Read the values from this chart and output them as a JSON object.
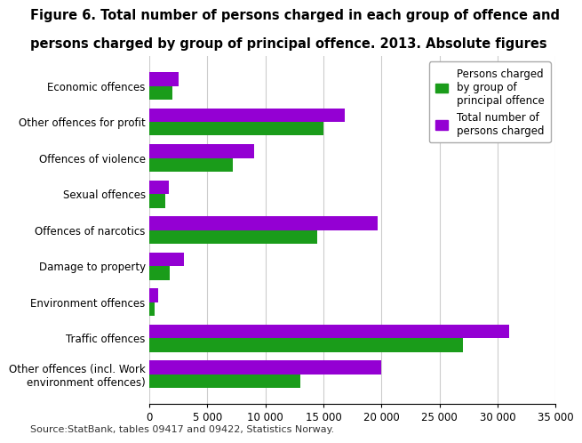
{
  "title_line1": "Figure 6. Total number of persons charged in each group of offence and",
  "title_line2": "persons charged by group of principal offence. 2013. Absolute figures",
  "categories": [
    "Economic offences",
    "Other offences for profit",
    "Offences of violence",
    "Sexual offences",
    "Offences of narcotics",
    "Damage to property",
    "Environment offences",
    "Traffic offences",
    "Other offences (incl. Work\nenvironment offences)"
  ],
  "green_values": [
    2000,
    15000,
    7200,
    1400,
    14500,
    1800,
    500,
    27000,
    13000
  ],
  "purple_values": [
    2500,
    16800,
    9000,
    1700,
    19700,
    3000,
    800,
    31000,
    20000
  ],
  "green_color": "#1a9c1a",
  "purple_color": "#9400d3",
  "legend_green": "Persons charged\nby group of\nprincipal offence",
  "legend_purple": "Total number of\npersons charged",
  "xlim": [
    0,
    35000
  ],
  "xticks": [
    0,
    5000,
    10000,
    15000,
    20000,
    25000,
    30000,
    35000
  ],
  "xtick_labels": [
    "0",
    "5 000",
    "10 000",
    "15 000",
    "20 000",
    "25 000",
    "30 000",
    "35 000"
  ],
  "source": "Source:StatBank, tables 09417 and 09422, Statistics Norway.",
  "background_color": "#ffffff",
  "grid_color": "#cccccc",
  "bar_height": 0.38,
  "title_fontsize": 10.5,
  "axis_fontsize": 8.5,
  "legend_fontsize": 8.5,
  "source_fontsize": 8
}
